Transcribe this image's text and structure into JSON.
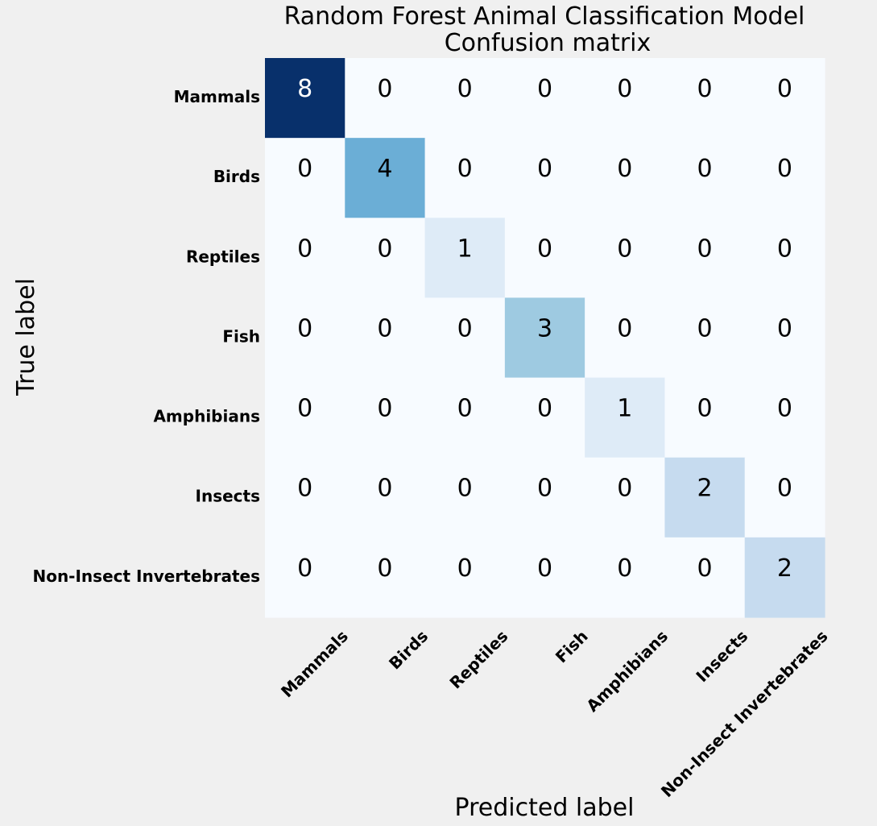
{
  "chart_data": {
    "type": "heatmap",
    "title": "Random Forest Animal Classification Model",
    "subtitle": "Confusion matrix",
    "xlabel": "Predicted label",
    "ylabel": "True label",
    "x_categories": [
      "Mammals",
      "Birds",
      "Reptiles",
      "Fish",
      "Amphibians",
      "Insects",
      "Non-Insect Invertebrates"
    ],
    "y_categories": [
      "Mammals",
      "Birds",
      "Reptiles",
      "Fish",
      "Amphibians",
      "Insects",
      "Non-Insect Invertebrates"
    ],
    "values": [
      [
        8,
        0,
        0,
        0,
        0,
        0,
        0
      ],
      [
        0,
        4,
        0,
        0,
        0,
        0,
        0
      ],
      [
        0,
        0,
        1,
        0,
        0,
        0,
        0
      ],
      [
        0,
        0,
        0,
        3,
        0,
        0,
        0
      ],
      [
        0,
        0,
        0,
        0,
        1,
        0,
        0
      ],
      [
        0,
        0,
        0,
        0,
        0,
        2,
        0
      ],
      [
        0,
        0,
        0,
        0,
        0,
        0,
        2
      ]
    ],
    "colormap": "Blues",
    "value_range": [
      0,
      8
    ],
    "grid": false
  },
  "colors": {
    "background": "#f0f0f0",
    "text_dark": "#000000",
    "text_light": "#ffffff"
  }
}
